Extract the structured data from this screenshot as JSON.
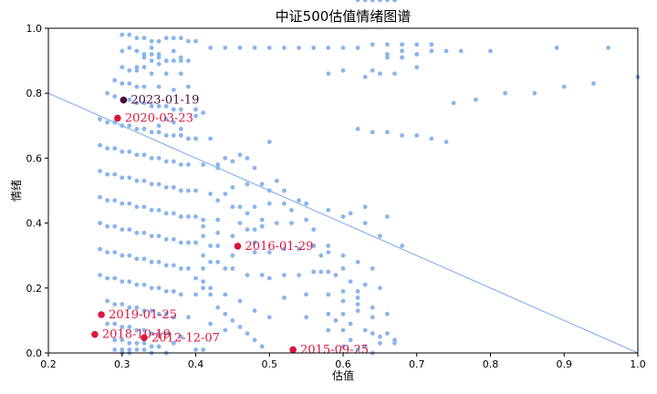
{
  "chart_data": {
    "type": "scatter",
    "title": "中证500估值情绪图谱",
    "xlabel": "估值",
    "ylabel": "情绪",
    "xlim": [
      0.2,
      1.0
    ],
    "ylim": [
      0.0,
      1.0
    ],
    "xticks": [
      "0.2",
      "0.3",
      "0.4",
      "0.5",
      "0.6",
      "0.7",
      "0.8",
      "0.9",
      "1.0"
    ],
    "yticks": [
      "0.0",
      "0.2",
      "0.4",
      "0.6",
      "0.8",
      "1.0"
    ],
    "grid": false,
    "colors": {
      "points": "#8ab4ee",
      "reference_line": "#8ab4ee",
      "highlight": "#dc143c",
      "latest": "#4b0a3a"
    },
    "reference_line": {
      "x": [
        0.2,
        1.0
      ],
      "y": [
        0.8,
        0.0
      ]
    },
    "highlights": [
      {
        "label": "2023-01-19",
        "x": 0.302,
        "y": 0.779,
        "color": "#4b0a3a"
      },
      {
        "label": "2020-03-23",
        "x": 0.294,
        "y": 0.723,
        "color": "#dc143c"
      },
      {
        "label": "2016-01-29",
        "x": 0.457,
        "y": 0.329,
        "color": "#dc143c"
      },
      {
        "label": "2019-01-25",
        "x": 0.272,
        "y": 0.118,
        "color": "#dc143c"
      },
      {
        "label": "2018-10-19",
        "x": 0.263,
        "y": 0.057,
        "color": "#dc143c"
      },
      {
        "label": "2012-12-07",
        "x": 0.33,
        "y": 0.047,
        "color": "#dc143c"
      },
      {
        "label": "2015-09-25",
        "x": 0.532,
        "y": 0.01,
        "color": "#dc143c"
      }
    ],
    "points_x": [
      0.3,
      0.31,
      0.32,
      0.33,
      0.34,
      0.35,
      0.36,
      0.37,
      0.38,
      0.39,
      0.4,
      0.33,
      0.34,
      0.35,
      0.36,
      0.37,
      0.38,
      0.39,
      0.3,
      0.31,
      0.32,
      0.34,
      0.36,
      0.38,
      0.29,
      0.3,
      0.31,
      0.32,
      0.33,
      0.35,
      0.37,
      0.39,
      0.28,
      0.29,
      0.3,
      0.31,
      0.32,
      0.33,
      0.34,
      0.35,
      0.36,
      0.37,
      0.38,
      0.4,
      0.41,
      0.27,
      0.28,
      0.29,
      0.3,
      0.31,
      0.32,
      0.33,
      0.34,
      0.35,
      0.36,
      0.37,
      0.38,
      0.39,
      0.4,
      0.42,
      0.27,
      0.28,
      0.29,
      0.3,
      0.31,
      0.32,
      0.33,
      0.34,
      0.35,
      0.36,
      0.37,
      0.38,
      0.39,
      0.41,
      0.43,
      0.27,
      0.28,
      0.29,
      0.3,
      0.31,
      0.32,
      0.33,
      0.34,
      0.35,
      0.36,
      0.37,
      0.38,
      0.39,
      0.4,
      0.42,
      0.44,
      0.27,
      0.28,
      0.29,
      0.3,
      0.31,
      0.32,
      0.33,
      0.34,
      0.35,
      0.36,
      0.37,
      0.38,
      0.39,
      0.4,
      0.41,
      0.43,
      0.27,
      0.28,
      0.29,
      0.3,
      0.31,
      0.32,
      0.33,
      0.34,
      0.35,
      0.36,
      0.37,
      0.38,
      0.39,
      0.4,
      0.42,
      0.27,
      0.28,
      0.29,
      0.3,
      0.31,
      0.32,
      0.33,
      0.34,
      0.35,
      0.36,
      0.37,
      0.38,
      0.39,
      0.41,
      0.27,
      0.28,
      0.29,
      0.3,
      0.31,
      0.32,
      0.33,
      0.34,
      0.35,
      0.36,
      0.37,
      0.38,
      0.4,
      0.28,
      0.29,
      0.3,
      0.31,
      0.32,
      0.33,
      0.34,
      0.35,
      0.36,
      0.37,
      0.39,
      0.28,
      0.29,
      0.3,
      0.31,
      0.32,
      0.33,
      0.34,
      0.35,
      0.36,
      0.38,
      0.29,
      0.3,
      0.31,
      0.32,
      0.33,
      0.34,
      0.35,
      0.37,
      0.29,
      0.3,
      0.31,
      0.32,
      0.33,
      0.34,
      0.36,
      0.3,
      0.31,
      0.32,
      0.33,
      0.35,
      0.3,
      0.32,
      0.34,
      0.31,
      0.33,
      0.35,
      0.37,
      0.32,
      0.34,
      0.36,
      0.38,
      0.33,
      0.35,
      0.37,
      0.36,
      0.38,
      0.4,
      0.43,
      0.45,
      0.47,
      0.44,
      0.46,
      0.48,
      0.5,
      0.52,
      0.45,
      0.47,
      0.49,
      0.51,
      0.53,
      0.46,
      0.48,
      0.5,
      0.52,
      0.54,
      0.56,
      0.47,
      0.49,
      0.51,
      0.53,
      0.55,
      0.57,
      0.48,
      0.5,
      0.52,
      0.54,
      0.56,
      0.58,
      0.5,
      0.52,
      0.54,
      0.56,
      0.58,
      0.6,
      0.62,
      0.52,
      0.55,
      0.58,
      0.6,
      0.62,
      0.64,
      0.55,
      0.58,
      0.6,
      0.62,
      0.64,
      0.66,
      0.58,
      0.6,
      0.63,
      0.65,
      0.67,
      0.61,
      0.63,
      0.65,
      0.67,
      0.64,
      0.66,
      0.68,
      0.7,
      0.66,
      0.68,
      0.7,
      0.72,
      0.68,
      0.7,
      0.72,
      0.74,
      0.76,
      0.8,
      0.89,
      0.96,
      0.42,
      0.44,
      0.46,
      0.48,
      0.5,
      0.52,
      0.54,
      0.56,
      0.58,
      0.6,
      0.62,
      0.64,
      0.66,
      0.68,
      0.7,
      0.72,
      0.75,
      0.78,
      0.82,
      0.86,
      0.9,
      0.94,
      1.0,
      0.58,
      0.6,
      0.62,
      0.64,
      0.66,
      0.68,
      0.7,
      0.72,
      0.74,
      0.5,
      0.52,
      0.55,
      0.58,
      0.6,
      0.63,
      0.65,
      0.68,
      0.41,
      0.43,
      0.45,
      0.47,
      0.49,
      0.41,
      0.42,
      0.44,
      0.46,
      0.48,
      0.5,
      0.42,
      0.44,
      0.46,
      0.48,
      0.41,
      0.43,
      0.45,
      0.42,
      0.44,
      0.4,
      0.41,
      0.42,
      0.43,
      0.44,
      0.45,
      0.46,
      0.47,
      0.48,
      0.49,
      0.4,
      0.41,
      0.43,
      0.45,
      0.47,
      0.49,
      0.41,
      0.43,
      0.45,
      0.48,
      0.56,
      0.58,
      0.6,
      0.62,
      0.64,
      0.57,
      0.59,
      0.61,
      0.63,
      0.65,
      0.58,
      0.6,
      0.62,
      0.64,
      0.66,
      0.59,
      0.61,
      0.63,
      0.65,
      0.67,
      0.6,
      0.62,
      0.64,
      0.66,
      0.61,
      0.63,
      0.65,
      0.67,
      0.62,
      0.64,
      0.66,
      0.63,
      0.65,
      0.67,
      0.64,
      0.66,
      0.67
    ],
    "points_y": [
      0.98,
      0.98,
      0.97,
      0.97,
      0.96,
      0.96,
      0.97,
      0.97,
      0.97,
      0.96,
      0.96,
      0.92,
      0.92,
      0.91,
      0.9,
      0.9,
      0.9,
      0.9,
      0.88,
      0.87,
      0.87,
      0.86,
      0.86,
      0.86,
      0.84,
      0.83,
      0.83,
      0.82,
      0.82,
      0.82,
      0.81,
      0.82,
      0.8,
      0.79,
      0.78,
      0.78,
      0.77,
      0.77,
      0.76,
      0.76,
      0.76,
      0.75,
      0.75,
      0.75,
      0.74,
      0.72,
      0.71,
      0.71,
      0.7,
      0.7,
      0.69,
      0.69,
      0.68,
      0.68,
      0.67,
      0.67,
      0.67,
      0.66,
      0.66,
      0.66,
      0.64,
      0.63,
      0.63,
      0.62,
      0.62,
      0.61,
      0.61,
      0.6,
      0.6,
      0.59,
      0.59,
      0.58,
      0.58,
      0.58,
      0.57,
      0.56,
      0.55,
      0.55,
      0.54,
      0.54,
      0.53,
      0.53,
      0.52,
      0.52,
      0.51,
      0.51,
      0.5,
      0.5,
      0.5,
      0.49,
      0.49,
      0.48,
      0.47,
      0.47,
      0.46,
      0.46,
      0.45,
      0.45,
      0.44,
      0.44,
      0.43,
      0.43,
      0.42,
      0.42,
      0.42,
      0.41,
      0.41,
      0.4,
      0.39,
      0.39,
      0.38,
      0.38,
      0.37,
      0.37,
      0.36,
      0.36,
      0.35,
      0.35,
      0.34,
      0.34,
      0.34,
      0.33,
      0.32,
      0.31,
      0.31,
      0.3,
      0.3,
      0.29,
      0.29,
      0.28,
      0.28,
      0.27,
      0.27,
      0.26,
      0.26,
      0.26,
      0.24,
      0.23,
      0.23,
      0.22,
      0.22,
      0.21,
      0.21,
      0.2,
      0.2,
      0.19,
      0.19,
      0.18,
      0.18,
      0.16,
      0.15,
      0.15,
      0.14,
      0.14,
      0.13,
      0.13,
      0.12,
      0.12,
      0.11,
      0.11,
      0.09,
      0.09,
      0.08,
      0.08,
      0.07,
      0.07,
      0.06,
      0.06,
      0.06,
      0.05,
      0.04,
      0.04,
      0.03,
      0.03,
      0.03,
      0.02,
      0.02,
      0.03,
      0.01,
      0.01,
      0.01,
      0.01,
      0.01,
      0.0,
      0.0,
      0.0,
      0.0,
      0.88,
      0.88,
      0.89,
      0.93,
      0.93,
      0.94,
      0.94,
      0.92,
      0.92,
      0.93,
      0.93,
      0.9,
      0.9,
      0.91,
      0.91,
      0.7,
      0.71,
      0.72,
      0.69,
      0.73,
      0.58,
      0.59,
      0.6,
      0.6,
      0.61,
      0.57,
      0.5,
      0.5,
      0.51,
      0.52,
      0.52,
      0.53,
      0.44,
      0.45,
      0.45,
      0.46,
      0.46,
      0.47,
      0.38,
      0.38,
      0.39,
      0.4,
      0.4,
      0.41,
      0.3,
      0.31,
      0.31,
      0.32,
      0.32,
      0.33,
      0.33,
      0.23,
      0.24,
      0.24,
      0.25,
      0.25,
      0.26,
      0.17,
      0.17,
      0.18,
      0.18,
      0.19,
      0.19,
      0.11,
      0.11,
      0.12,
      0.12,
      0.13,
      0.06,
      0.06,
      0.07,
      0.07,
      0.02,
      0.03,
      0.03,
      0.04,
      0.85,
      0.86,
      0.86,
      0.87,
      0.91,
      0.91,
      0.92,
      0.92,
      0.93,
      0.88,
      0.95,
      0.95,
      0.92,
      0.93,
      0.93,
      0.93,
      0.93,
      0.94,
      0.94,
      0.94,
      0.94,
      0.94,
      0.94,
      0.94,
      0.94,
      0.94,
      0.94,
      0.94,
      0.94,
      0.94,
      0.95,
      0.95,
      0.95,
      0.95,
      0.95,
      0.77,
      0.78,
      0.8,
      0.8,
      0.82,
      0.83,
      0.85,
      0.86,
      0.87,
      0.69,
      0.68,
      0.68,
      0.67,
      0.67,
      0.66,
      0.65,
      0.65,
      0.5,
      0.46,
      0.44,
      0.42,
      0.4,
      0.36,
      0.33,
      0.3,
      0.28,
      0.26,
      0.24,
      0.24,
      0.22,
      0.2,
      0.18,
      0.16,
      0.13,
      0.11,
      0.09,
      0.07,
      0.4,
      0.38,
      0.36,
      0.33,
      0.3,
      0.28,
      0.26,
      0.23,
      0.2,
      0.18,
      0.14,
      0.12,
      0.1,
      0.08,
      0.06,
      0.04,
      0.02,
      0.01,
      0.01,
      0.47,
      0.45,
      0.43,
      0.41,
      0.39,
      0.37,
      0.36,
      0.34,
      0.33,
      0.31,
      0.3,
      0.28,
      0.26,
      0.25,
      0.24,
      0.22,
      0.21,
      0.2,
      0.18,
      0.16,
      0.15,
      0.14,
      0.12,
      0.1,
      0.09,
      0.07,
      0.05,
      0.04,
      0.02,
      0.01,
      0.0,
      0.42,
      0.43,
      0.45
    ]
  }
}
